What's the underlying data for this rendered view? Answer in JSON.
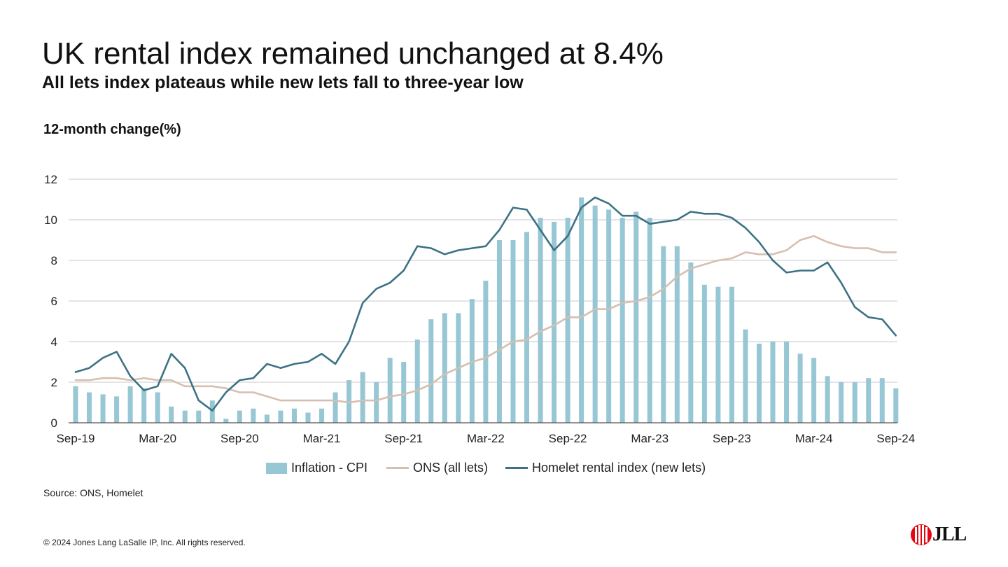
{
  "header": {
    "title": "UK rental index remained unchanged at 8.4%",
    "subtitle": "All lets index plateaus while new lets fall to three-year low"
  },
  "chart_data": {
    "type": "bar",
    "ylabel": "12-month change(%)",
    "ylim": [
      0,
      12
    ],
    "yticks": [
      0,
      2,
      4,
      6,
      8,
      10,
      12
    ],
    "xtick_labels": [
      "Sep-19",
      "Mar-20",
      "Sep-20",
      "Mar-21",
      "Sep-21",
      "Mar-22",
      "Sep-22",
      "Mar-23",
      "Sep-23",
      "Mar-24",
      "Sep-24"
    ],
    "grid": true,
    "legend_position": "bottom",
    "colors": {
      "cpi": "#97c6d4",
      "ons": "#d6bfb0",
      "homelet": "#3d7284",
      "grid": "#c8c8c8",
      "axis": "#555555"
    },
    "series": [
      {
        "name": "Inflation - CPI",
        "kind": "bar",
        "values": [
          1.8,
          1.5,
          1.4,
          1.3,
          1.8,
          1.7,
          1.5,
          0.8,
          0.6,
          0.6,
          1.1,
          0.2,
          0.6,
          0.7,
          0.4,
          0.6,
          0.7,
          0.5,
          0.7,
          1.5,
          2.1,
          2.5,
          2.0,
          3.2,
          3.0,
          4.1,
          5.1,
          5.4,
          5.4,
          6.1,
          7.0,
          9.0,
          9.0,
          9.4,
          10.1,
          9.9,
          10.1,
          11.1,
          10.7,
          10.5,
          10.1,
          10.4,
          10.1,
          8.7,
          8.7,
          7.9,
          6.8,
          6.7,
          6.7,
          4.6,
          3.9,
          4.0,
          4.0,
          3.4,
          3.2,
          2.3,
          2.0,
          2.0,
          2.2,
          2.2,
          1.7
        ]
      },
      {
        "name": "ONS (all lets)",
        "kind": "line",
        "values": [
          2.1,
          2.1,
          2.2,
          2.2,
          2.1,
          2.2,
          2.1,
          2.1,
          1.8,
          1.8,
          1.8,
          1.7,
          1.5,
          1.5,
          1.3,
          1.1,
          1.1,
          1.1,
          1.1,
          1.1,
          1.0,
          1.1,
          1.1,
          1.3,
          1.4,
          1.6,
          1.9,
          2.4,
          2.7,
          3.0,
          3.2,
          3.6,
          4.0,
          4.1,
          4.5,
          4.8,
          5.2,
          5.2,
          5.6,
          5.6,
          5.9,
          6.0,
          6.2,
          6.6,
          7.2,
          7.6,
          7.8,
          8.0,
          8.1,
          8.4,
          8.3,
          8.3,
          8.5,
          9.0,
          9.2,
          8.9,
          8.7,
          8.6,
          8.6,
          8.4,
          8.4
        ]
      },
      {
        "name": "Homelet rental index (new lets)",
        "kind": "line",
        "values": [
          2.5,
          2.7,
          3.2,
          3.5,
          2.3,
          1.6,
          1.8,
          3.4,
          2.7,
          1.1,
          0.6,
          1.5,
          2.1,
          2.2,
          2.9,
          2.7,
          2.9,
          3.0,
          3.4,
          2.9,
          4.0,
          5.9,
          6.6,
          6.9,
          7.5,
          8.7,
          8.6,
          8.3,
          8.5,
          8.6,
          8.7,
          9.5,
          10.6,
          10.5,
          9.5,
          8.5,
          9.2,
          10.6,
          11.1,
          10.8,
          10.2,
          10.2,
          9.8,
          9.9,
          10.0,
          10.4,
          10.3,
          10.3,
          10.1,
          9.6,
          8.9,
          8.0,
          7.4,
          7.5,
          7.5,
          7.9,
          6.9,
          5.7,
          5.2,
          5.1,
          4.3
        ]
      }
    ]
  },
  "legend": {
    "cpi_label": "Inflation - CPI",
    "ons_label": "ONS (all lets)",
    "homelet_label": "Homelet rental index (new lets)"
  },
  "footer": {
    "source": "Source: ONS, Homelet",
    "copyright": "© 2024 Jones Lang LaSalle IP, Inc. All rights reserved.",
    "logo_text": "JLL"
  }
}
